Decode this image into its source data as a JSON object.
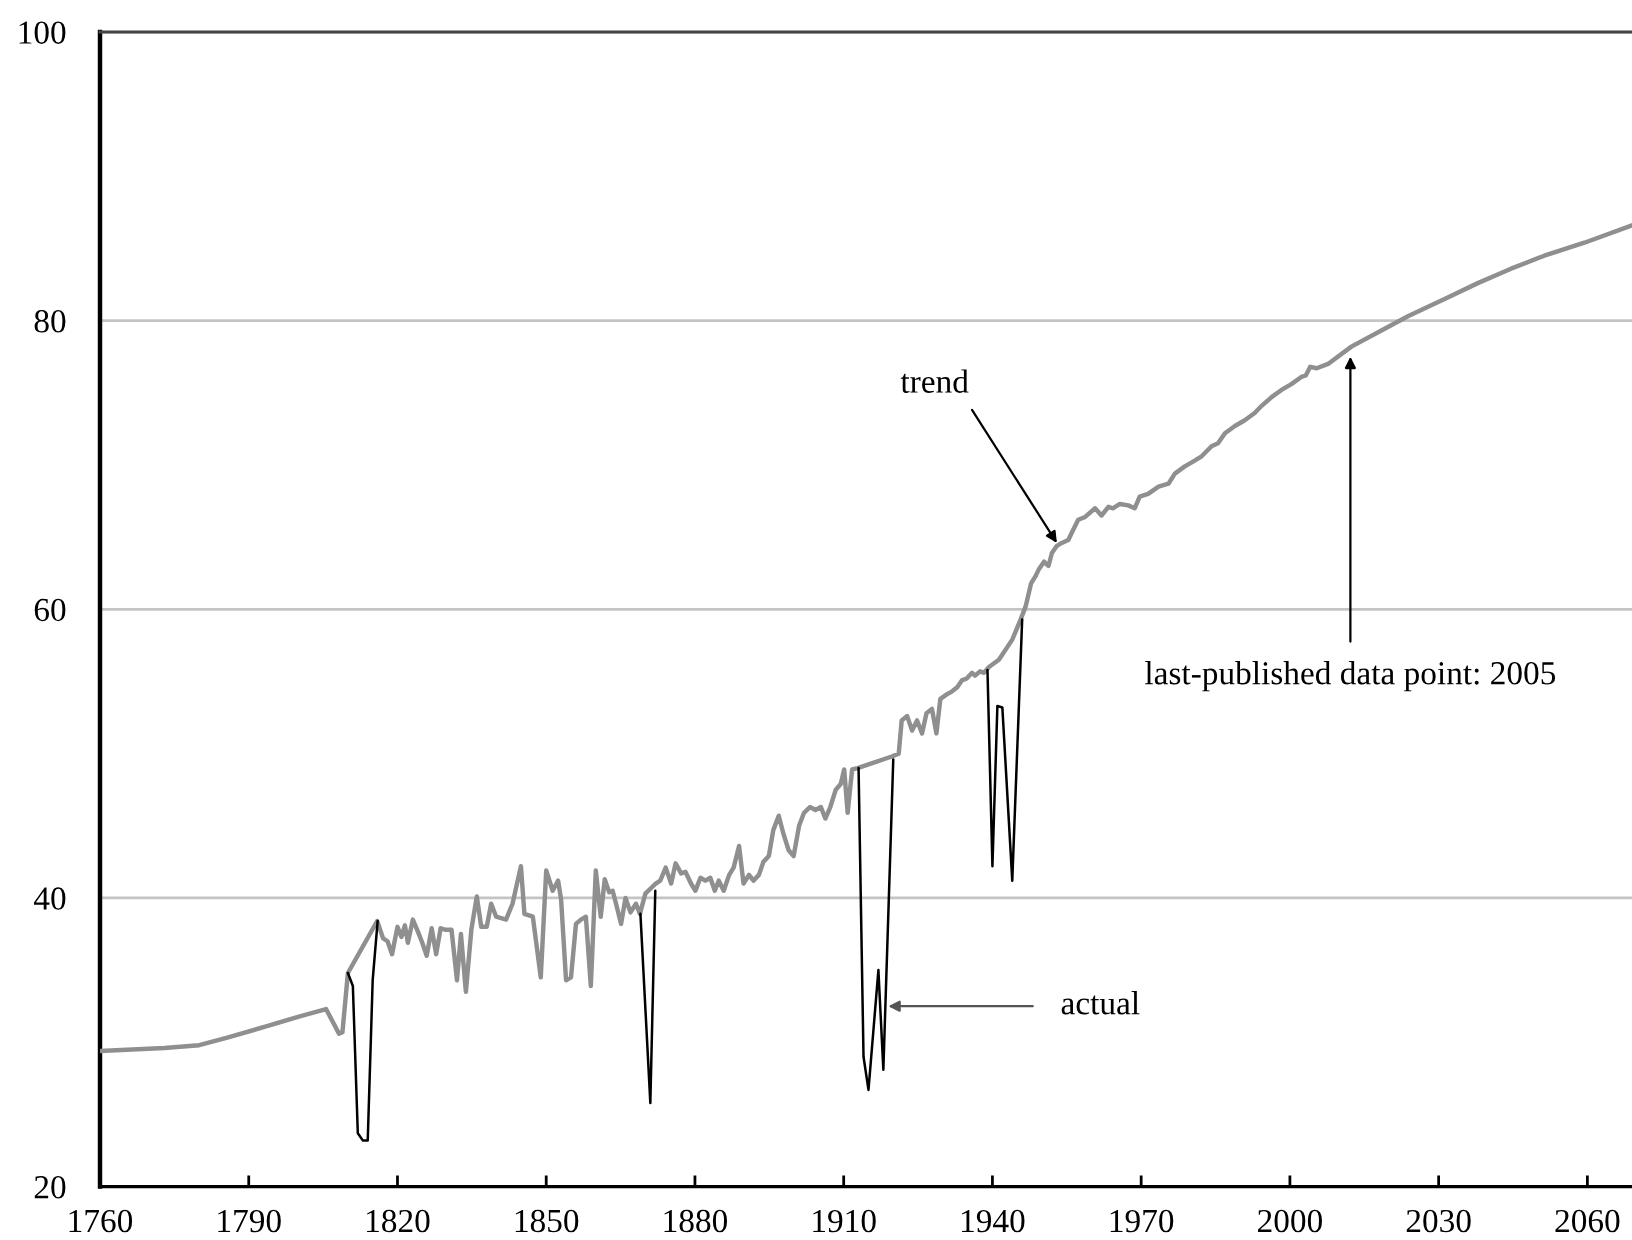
{
  "chart_data": {
    "type": "line",
    "xlim": [
      1760,
      2069
    ],
    "ylim": [
      20,
      100
    ],
    "xticks": [
      1760,
      1790,
      1820,
      1850,
      1880,
      1910,
      1940,
      1970,
      2000,
      2030,
      2060
    ],
    "yticks": [
      20,
      40,
      60,
      80,
      100
    ],
    "grid": "y",
    "series": [
      {
        "color": "#8f8f8f",
        "x": [
          1760,
          1773,
          1780,
          1785.5,
          1793.5,
          1800.3,
          1805.6,
          1808.2,
          1808.9,
          1810,
          1815.9,
          1817.1,
          1818,
          1818.9,
          1820,
          1820.8,
          1821.5,
          1822.1,
          1823.1,
          1824.2,
          1825,
          1825.9,
          1826.9,
          1827.8,
          1828.7,
          1829.6,
          1830.9,
          1832,
          1832.8,
          1833.8,
          1834.9,
          1836,
          1836.9,
          1838,
          1838.9,
          1839.9,
          1841.9,
          1843.2,
          1844.9,
          1845.6,
          1847.3,
          1848.9,
          1850,
          1851.3,
          1852.4,
          1853,
          1854,
          1855,
          1856,
          1857,
          1858,
          1859,
          1860,
          1861,
          1861.8,
          1862.7,
          1863.4,
          1864.3,
          1865.1,
          1866,
          1867,
          1868.1,
          1868.9,
          1870,
          1872.1,
          1873,
          1874.1,
          1875.2,
          1876.1,
          1877.2,
          1878.1,
          1879.2,
          1880.1,
          1881.1,
          1882.1,
          1883.1,
          1884,
          1884.8,
          1885.8,
          1886.9,
          1887.8,
          1888.9,
          1889.8,
          1890.9,
          1891.8,
          1892.9,
          1893.8,
          1894.9,
          1895.8,
          1896.9,
          1897.8,
          1898.9,
          1899.9,
          1901,
          1902,
          1903.2,
          1904.3,
          1905.4,
          1906.3,
          1907.3,
          1908.4,
          1909.4,
          1910.1,
          1910.8,
          1911.7,
          1912.8,
          1919.7,
          1921.1,
          1921.7,
          1922.8,
          1923.8,
          1924.8,
          1925.8,
          1926.7,
          1927.8,
          1928.7,
          1929.5,
          1930.8,
          1931.8,
          1932.9,
          1933.9,
          1934.8,
          1935.9,
          1936.5,
          1937.5,
          1938.3,
          1939.3,
          1941.3,
          1944,
          1945.7,
          1946.7,
          1947.8,
          1948.7,
          1949.4,
          1950.4,
          1951.3,
          1952,
          1953,
          1954,
          1955.3,
          1956,
          1957.3,
          1958.7,
          1960.7,
          1962,
          1963.4,
          1964.3,
          1965.7,
          1967.4,
          1968.7,
          1969.7,
          1971.4,
          1973.5,
          1975.5,
          1976.8,
          1978.8,
          1980.8,
          1982.2,
          1984.2,
          1985.5,
          1986.9,
          1988.9,
          1990.9,
          1992.9,
          1994.3,
          1996.3,
          1998.3,
          2000.3,
          2002.3,
          2003.2,
          2004.1,
          2005.4,
          2007.7,
          2012.4,
          2017.8,
          2023.8,
          2031.2,
          2037.9,
          2044.6,
          2051.3,
          2059.4,
          2069
        ],
        "values": [
          29.4,
          29.6,
          29.8,
          30.3,
          31.1,
          31.8,
          32.3,
          30.6,
          30.7,
          34.8,
          38.4,
          37.2,
          37.0,
          36.1,
          38.0,
          37.3,
          38.1,
          36.9,
          38.5,
          37.6,
          36.9,
          36.0,
          37.9,
          36.1,
          37.9,
          37.8,
          37.8,
          34.3,
          37.5,
          33.5,
          37.8,
          40.1,
          38.0,
          38.0,
          39.6,
          38.7,
          38.5,
          39.6,
          42.2,
          38.9,
          38.7,
          34.5,
          41.9,
          40.5,
          41.2,
          39.9,
          34.3,
          34.5,
          38.2,
          38.5,
          38.7,
          33.9,
          41.9,
          38.7,
          41.3,
          40.4,
          40.5,
          39.3,
          38.2,
          40.0,
          39.0,
          39.6,
          38.9,
          40.3,
          41.0,
          41.2,
          42.1,
          41.0,
          42.4,
          41.7,
          41.8,
          41.0,
          40.5,
          41.4,
          41.2,
          41.4,
          40.5,
          41.2,
          40.5,
          41.6,
          42.1,
          43.6,
          41.0,
          41.6,
          41.2,
          41.6,
          42.5,
          42.9,
          44.7,
          45.7,
          44.5,
          43.3,
          42.9,
          45.0,
          45.9,
          46.3,
          46.1,
          46.3,
          45.5,
          46.3,
          47.5,
          47.9,
          48.9,
          45.9,
          48.9,
          49.0,
          49.8,
          50.0,
          52.3,
          52.6,
          51.6,
          52.3,
          51.4,
          52.8,
          53.1,
          51.4,
          53.8,
          54.1,
          54.3,
          54.6,
          55.1,
          55.2,
          55.6,
          55.4,
          55.7,
          55.6,
          56.0,
          56.5,
          57.9,
          59.3,
          60.2,
          61.8,
          62.3,
          62.8,
          63.3,
          63.0,
          63.9,
          64.4,
          64.6,
          64.8,
          65.3,
          66.2,
          66.4,
          67.0,
          66.5,
          67.1,
          67.0,
          67.3,
          67.2,
          67.0,
          67.8,
          68.0,
          68.5,
          68.7,
          69.4,
          69.9,
          70.3,
          70.6,
          71.3,
          71.5,
          72.2,
          72.7,
          73.1,
          73.6,
          74.1,
          74.7,
          75.2,
          75.6,
          76.1,
          76.2,
          76.8,
          76.7,
          77.0,
          78.2,
          79.2,
          80.3,
          81.5,
          82.6,
          83.6,
          84.5,
          85.4,
          86.6
        ]
      },
      {
        "color": "#000000",
        "x": [
          1810,
          1811,
          1812,
          1813,
          1814,
          1815,
          1816,
          1840,
          1869,
          1871,
          1872,
          1890,
          1913,
          1914,
          1915,
          1917,
          1918,
          1920,
          1930,
          1939,
          1940,
          1941,
          1942,
          1944,
          1946
        ],
        "values": [
          34.8,
          33.9,
          23.7,
          23.2,
          23.2,
          34.3,
          38.4,
          null,
          38.9,
          25.8,
          40.5,
          null,
          49.0,
          29.0,
          26.7,
          35.0,
          28.1,
          49.6,
          null,
          55.8,
          42.2,
          53.3,
          53.2,
          41.2,
          59.3
        ]
      }
    ],
    "annotations": [
      {
        "text": "trend",
        "x": 1953,
        "y": 64.6
      },
      {
        "text": "actual",
        "x": 1919,
        "y": 32.5
      },
      {
        "text": "last-published data point: 2005",
        "x": 2012.2,
        "y": 77.5
      }
    ]
  }
}
